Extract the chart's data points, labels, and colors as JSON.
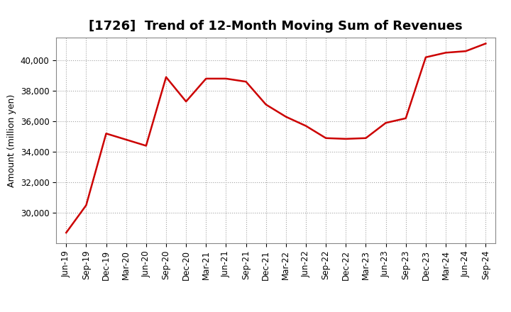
{
  "title": "[1726]  Trend of 12-Month Moving Sum of Revenues",
  "ylabel": "Amount (million yen)",
  "line_color": "#cc0000",
  "line_width": 1.8,
  "bg_color": "#ffffff",
  "plot_bg_color": "#ffffff",
  "grid_color": "#999999",
  "xlabels": [
    "Jun-19",
    "Sep-19",
    "Dec-19",
    "Mar-20",
    "Jun-20",
    "Sep-20",
    "Dec-20",
    "Mar-21",
    "Jun-21",
    "Sep-21",
    "Dec-21",
    "Mar-22",
    "Jun-22",
    "Sep-22",
    "Dec-22",
    "Mar-23",
    "Jun-23",
    "Sep-23",
    "Dec-23",
    "Mar-24",
    "Jun-24",
    "Sep-24"
  ],
  "values": [
    28700,
    30500,
    35200,
    34800,
    34400,
    38900,
    37300,
    38800,
    38800,
    38600,
    37100,
    36300,
    35700,
    34900,
    34850,
    34900,
    35900,
    36200,
    40200,
    40500,
    40600,
    41100
  ],
  "ylim": [
    28000,
    41500
  ],
  "yticks": [
    30000,
    32000,
    34000,
    36000,
    38000,
    40000
  ],
  "title_fontsize": 13,
  "axis_fontsize": 9,
  "tick_fontsize": 8.5,
  "figsize": [
    7.2,
    4.4
  ],
  "dpi": 100
}
